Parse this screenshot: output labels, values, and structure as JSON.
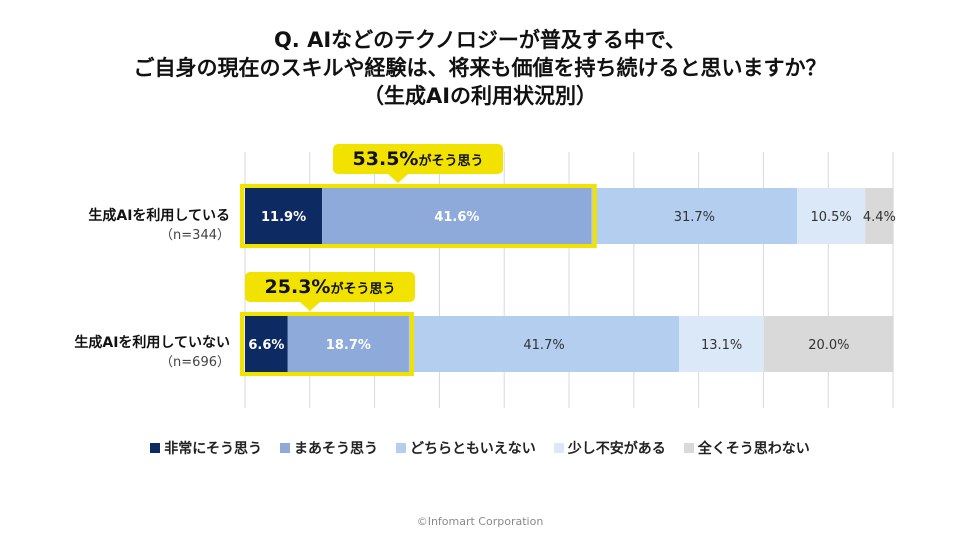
{
  "title_lines": [
    "Q. AIなどのテクノロジーが普及する中で、",
    "ご自身の現在のスキルや経験は、将来も価値を持ち続けると思いますか？",
    "（生成AIの利用状況別）"
  ],
  "footer": "©Infomart Corporation",
  "chart_data": {
    "type": "bar",
    "stacked": true,
    "orientation": "horizontal",
    "percent": true,
    "xlim": [
      0,
      100
    ],
    "grid": true,
    "legend_position": "bottom",
    "categories": [
      "生成AIを利用している",
      "生成AIを利用していない"
    ],
    "category_notes": [
      "（n=344）",
      "（n=696）"
    ],
    "series": [
      {
        "name": "非常にそう思う",
        "color": "#0d2a63",
        "values": [
          11.9,
          6.6
        ],
        "labels": [
          "11.9%",
          "6.6%"
        ]
      },
      {
        "name": "まあそう思う",
        "color": "#8eaadb",
        "values": [
          41.6,
          18.7
        ],
        "labels": [
          "41.6%",
          "18.7%"
        ]
      },
      {
        "name": "どちらともいえない",
        "color": "#b4cef0",
        "values": [
          31.7,
          41.7
        ],
        "labels": [
          "31.7%",
          "41.7%"
        ]
      },
      {
        "name": "少し不安がある",
        "color": "#dbe8f7",
        "values": [
          10.5,
          13.1
        ],
        "labels": [
          "10.5%",
          "13.1%"
        ]
      },
      {
        "name": "全くそう思わない",
        "color": "#d9d9d9",
        "values": [
          4.4,
          20.0
        ],
        "labels": [
          "4.4%",
          "20.0%"
        ]
      }
    ],
    "callouts": [
      {
        "value": "53.5%",
        "text": "がそう思う"
      },
      {
        "value": "25.3%",
        "text": "がそう思う"
      }
    ],
    "highlight_color": "#f2e200"
  }
}
